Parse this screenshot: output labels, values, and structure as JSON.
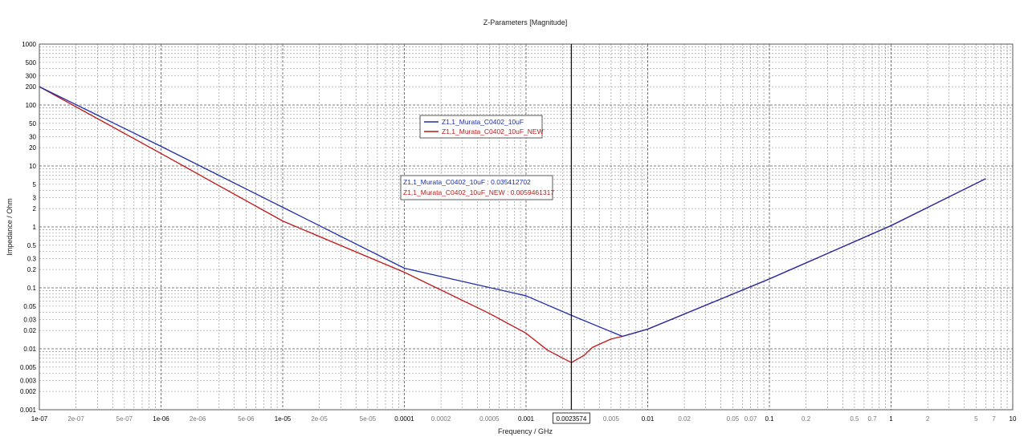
{
  "chart_data": {
    "type": "line",
    "title": "Z-Parameters [Magnitude]",
    "xlabel": "Frequency / GHz",
    "ylabel": "Impedance / Ohm",
    "x_scale": "log",
    "y_scale": "log",
    "xlim": [
      1e-07,
      10
    ],
    "ylim": [
      0.001,
      1000
    ],
    "grid": true,
    "legend_placement": "upper-center",
    "x_ticks": [
      {
        "v": 1e-07,
        "label": "1e-07",
        "major": true
      },
      {
        "v": 2e-07,
        "label": "2e-07",
        "major": false
      },
      {
        "v": 5e-07,
        "label": "5e-07",
        "major": false
      },
      {
        "v": 1e-06,
        "label": "1e-06",
        "major": true
      },
      {
        "v": 2e-06,
        "label": "2e-06",
        "major": false
      },
      {
        "v": 5e-06,
        "label": "5e-06",
        "major": false
      },
      {
        "v": 1e-05,
        "label": "1e-05",
        "major": true
      },
      {
        "v": 2e-05,
        "label": "2e-05",
        "major": false
      },
      {
        "v": 5e-05,
        "label": "5e-05",
        "major": false
      },
      {
        "v": 0.0001,
        "label": "0.0001",
        "major": true
      },
      {
        "v": 0.0002,
        "label": "0.0002",
        "major": false
      },
      {
        "v": 0.0005,
        "label": "0.0005",
        "major": false
      },
      {
        "v": 0.001,
        "label": "0.001",
        "major": true
      },
      {
        "v": 0.005,
        "label": "0.005",
        "major": false
      },
      {
        "v": 0.01,
        "label": "0.01",
        "major": true
      },
      {
        "v": 0.02,
        "label": "0.02",
        "major": false
      },
      {
        "v": 0.05,
        "label": "0.05",
        "major": false
      },
      {
        "v": 0.07,
        "label": "0.07",
        "major": false
      },
      {
        "v": 0.1,
        "label": "0.1",
        "major": true
      },
      {
        "v": 0.2,
        "label": "0.2",
        "major": false
      },
      {
        "v": 0.5,
        "label": "0.5",
        "major": false
      },
      {
        "v": 0.7,
        "label": "0.7",
        "major": false
      },
      {
        "v": 1,
        "label": "1",
        "major": true
      },
      {
        "v": 2,
        "label": "2",
        "major": false
      },
      {
        "v": 5,
        "label": "5",
        "major": false
      },
      {
        "v": 7,
        "label": "7",
        "major": false
      },
      {
        "v": 10,
        "label": "10",
        "major": true
      }
    ],
    "y_ticks": [
      {
        "v": 1000,
        "label": "1000",
        "major": true
      },
      {
        "v": 500,
        "label": "500",
        "major": false
      },
      {
        "v": 300,
        "label": "300",
        "major": false
      },
      {
        "v": 200,
        "label": "200",
        "major": false
      },
      {
        "v": 100,
        "label": "100",
        "major": true
      },
      {
        "v": 50,
        "label": "50",
        "major": false
      },
      {
        "v": 30,
        "label": "30",
        "major": false
      },
      {
        "v": 20,
        "label": "20",
        "major": false
      },
      {
        "v": 10,
        "label": "10",
        "major": true
      },
      {
        "v": 5,
        "label": "5",
        "major": false
      },
      {
        "v": 3,
        "label": "3",
        "major": false
      },
      {
        "v": 2,
        "label": "2",
        "major": false
      },
      {
        "v": 1,
        "label": "1",
        "major": true
      },
      {
        "v": 0.5,
        "label": "0.5",
        "major": false
      },
      {
        "v": 0.3,
        "label": "0.3",
        "major": false
      },
      {
        "v": 0.2,
        "label": "0.2",
        "major": false
      },
      {
        "v": 0.1,
        "label": "0.1",
        "major": true
      },
      {
        "v": 0.05,
        "label": "0.05",
        "major": false
      },
      {
        "v": 0.03,
        "label": "0.03",
        "major": false
      },
      {
        "v": 0.02,
        "label": "0.02",
        "major": false
      },
      {
        "v": 0.01,
        "label": "0.01",
        "major": true
      },
      {
        "v": 0.005,
        "label": "0.005",
        "major": false
      },
      {
        "v": 0.003,
        "label": "0.003",
        "major": false
      },
      {
        "v": 0.002,
        "label": "0.002",
        "major": false
      },
      {
        "v": 0.001,
        "label": "0.001",
        "major": true
      }
    ],
    "series": [
      {
        "name": "Z1,1_Murata_C0402_10uF",
        "color": "#1f2fa8",
        "points": [
          [
            1e-07,
            200
          ],
          [
            1e-06,
            21
          ],
          [
            1e-05,
            2.1
          ],
          [
            0.0001,
            0.21
          ],
          [
            0.001,
            0.074
          ],
          [
            0.0023574,
            0.035412702
          ],
          [
            0.0062,
            0.016
          ],
          [
            0.01,
            0.021
          ],
          [
            0.1,
            0.14
          ],
          [
            1,
            1.05
          ],
          [
            6.0,
            6.2
          ]
        ]
      },
      {
        "name": "Z1,1_Murata_C0402_10uF_NEW",
        "color": "#c01818",
        "points": [
          [
            1e-07,
            200
          ],
          [
            1e-06,
            16
          ],
          [
            1e-05,
            1.25
          ],
          [
            0.0001,
            0.18
          ],
          [
            0.0005,
            0.038
          ],
          [
            0.001,
            0.018
          ],
          [
            0.0015,
            0.0095
          ],
          [
            0.0023574,
            0.0059461317
          ],
          [
            0.003,
            0.0078
          ],
          [
            0.0035,
            0.0105
          ],
          [
            0.005,
            0.0145
          ],
          [
            0.0062,
            0.016
          ],
          [
            0.01,
            0.021
          ],
          [
            0.1,
            0.14
          ],
          [
            1,
            1.05
          ],
          [
            6.0,
            6.2
          ]
        ]
      }
    ],
    "cursor": {
      "x": 0.0023574,
      "label": "0.0023574",
      "readouts": [
        {
          "text": "Z1,1_Murata_C0402_10uF : 0.035412702",
          "color": "#1f2fa8"
        },
        {
          "text": "Z1,1_Murata_C0402_10uF_NEW : 0.0059461317",
          "color": "#c01818"
        }
      ]
    }
  }
}
